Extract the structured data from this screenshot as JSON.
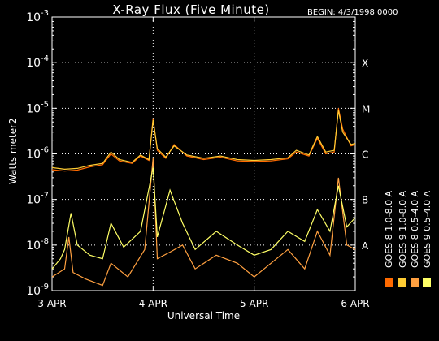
{
  "header": {
    "title": "X-Ray Flux (Five Minute)",
    "begin": "BEGIN: 4/3/1998 0000"
  },
  "axes": {
    "xlabel": "Universal Time",
    "ylabel": "Watts meter2"
  },
  "colors": {
    "background": "#000000",
    "goes8_long": "#ff6a00",
    "goes8_short": "#ffa040",
    "goes9_long": "#ffcc33",
    "goes9_short": "#ffff66",
    "grid": "#ffffff"
  },
  "chart_data": {
    "type": "line",
    "title": "X-Ray Flux (Five Minute)",
    "xlabel": "Universal Time",
    "ylabel": "Watts meter2",
    "yscale": "log",
    "ylim": [
      1e-09,
      0.001
    ],
    "xlim": [
      "1998-04-03T00:00",
      "1998-04-06T00:00"
    ],
    "grid": true,
    "legend_position": "right, vertical",
    "x_ticks": [
      {
        "date": "1998-04-03T00:00",
        "label": "3 APR"
      },
      {
        "date": "1998-04-04T00:00",
        "label": "4 APR"
      },
      {
        "date": "1998-04-05T00:00",
        "label": "5 APR"
      },
      {
        "date": "1998-04-06T00:00",
        "label": "6 APR"
      }
    ],
    "y_ticks": [
      {
        "value": 1e-09,
        "base": "10",
        "exp": "-9"
      },
      {
        "value": 1e-08,
        "base": "10",
        "exp": "-8"
      },
      {
        "value": 1e-07,
        "base": "10",
        "exp": "-7"
      },
      {
        "value": 1e-06,
        "base": "10",
        "exp": "-6"
      },
      {
        "value": 1e-05,
        "base": "10",
        "exp": "-5"
      },
      {
        "value": 0.0001,
        "base": "10",
        "exp": "-4"
      },
      {
        "value": 0.001,
        "base": "10",
        "exp": "-3"
      }
    ],
    "flare_classes": [
      {
        "label": "A",
        "value": 1e-08
      },
      {
        "label": "B",
        "value": 1e-07
      },
      {
        "label": "C",
        "value": 1e-06
      },
      {
        "label": "M",
        "value": 1e-05
      },
      {
        "label": "X",
        "value": 0.0001
      }
    ],
    "series": [
      {
        "name": "GOES 8 1.0-8.0 A",
        "color": "#ff6a00",
        "points": [
          [
            "1998-04-03T00:00",
            4.5e-07
          ],
          [
            "1998-04-03T03:00",
            4.2e-07
          ],
          [
            "1998-04-03T06:00",
            4.4e-07
          ],
          [
            "1998-04-03T09:00",
            5.2e-07
          ],
          [
            "1998-04-03T12:00",
            5.8e-07
          ],
          [
            "1998-04-03T14:00",
            1e-06
          ],
          [
            "1998-04-03T16:00",
            7e-07
          ],
          [
            "1998-04-03T19:00",
            6.2e-07
          ],
          [
            "1998-04-03T21:00",
            9e-07
          ],
          [
            "1998-04-03T23:00",
            7.2e-07
          ],
          [
            "1998-04-04T00:00",
            6e-06
          ],
          [
            "1998-04-04T01:00",
            1.2e-06
          ],
          [
            "1998-04-04T03:00",
            8e-07
          ],
          [
            "1998-04-04T05:00",
            1.6e-06
          ],
          [
            "1998-04-04T08:00",
            9e-07
          ],
          [
            "1998-04-04T12:00",
            7.5e-07
          ],
          [
            "1998-04-04T16:00",
            8.5e-07
          ],
          [
            "1998-04-04T20:00",
            7e-07
          ],
          [
            "1998-04-05T00:00",
            6.8e-07
          ],
          [
            "1998-04-05T04:00",
            7e-07
          ],
          [
            "1998-04-05T08:00",
            7.8e-07
          ],
          [
            "1998-04-05T10:00",
            1.1e-06
          ],
          [
            "1998-04-05T13:00",
            9e-07
          ],
          [
            "1998-04-05T15:00",
            2.2e-06
          ],
          [
            "1998-04-05T17:00",
            1e-06
          ],
          [
            "1998-04-05T19:00",
            1.1e-06
          ],
          [
            "1998-04-05T20:00",
            1e-05
          ],
          [
            "1998-04-05T21:00",
            3.5e-06
          ],
          [
            "1998-04-05T23:00",
            1.5e-06
          ],
          [
            "1998-04-06T00:00",
            1.6e-06
          ]
        ]
      },
      {
        "name": "GOES 8 0.5-4.0 A",
        "color": "#ffa040",
        "points": [
          [
            "1998-04-03T00:00",
            2e-09
          ],
          [
            "1998-04-03T03:00",
            3e-09
          ],
          [
            "1998-04-03T04:00",
            1.5e-08
          ],
          [
            "1998-04-03T05:00",
            2.5e-09
          ],
          [
            "1998-04-03T08:00",
            1.8e-09
          ],
          [
            "1998-04-03T12:00",
            1.3e-09
          ],
          [
            "1998-04-03T14:00",
            4e-09
          ],
          [
            "1998-04-03T18:00",
            2e-09
          ],
          [
            "1998-04-03T22:00",
            8e-09
          ],
          [
            "1998-04-04T00:00",
            8e-07
          ],
          [
            "1998-04-04T01:00",
            5e-09
          ],
          [
            "1998-04-04T04:00",
            7e-09
          ],
          [
            "1998-04-04T07:00",
            1e-08
          ],
          [
            "1998-04-04T10:00",
            3e-09
          ],
          [
            "1998-04-04T15:00",
            6e-09
          ],
          [
            "1998-04-04T20:00",
            4e-09
          ],
          [
            "1998-04-05T00:00",
            2e-09
          ],
          [
            "1998-04-05T04:00",
            4e-09
          ],
          [
            "1998-04-05T08:00",
            8e-09
          ],
          [
            "1998-04-05T12:00",
            3e-09
          ],
          [
            "1998-04-05T15:00",
            2e-08
          ],
          [
            "1998-04-05T18:00",
            6e-09
          ],
          [
            "1998-04-05T20:00",
            3e-07
          ],
          [
            "1998-04-05T22:00",
            1e-08
          ],
          [
            "1998-04-06T00:00",
            8e-09
          ]
        ]
      },
      {
        "name": "GOES 9 1.0-8.0 A",
        "color": "#ffcc33",
        "points": [
          [
            "1998-04-03T00:00",
            5e-07
          ],
          [
            "1998-04-03T03:00",
            4.6e-07
          ],
          [
            "1998-04-03T06:00",
            4.8e-07
          ],
          [
            "1998-04-03T09:00",
            5.6e-07
          ],
          [
            "1998-04-03T12:00",
            6.2e-07
          ],
          [
            "1998-04-03T14:00",
            1.1e-06
          ],
          [
            "1998-04-03T16:00",
            7.5e-07
          ],
          [
            "1998-04-03T19:00",
            6.5e-07
          ],
          [
            "1998-04-03T21:00",
            9.5e-07
          ],
          [
            "1998-04-03T23:00",
            7.5e-07
          ],
          [
            "1998-04-04T00:00",
            5.5e-06
          ],
          [
            "1998-04-04T01:00",
            1.3e-06
          ],
          [
            "1998-04-04T03:00",
            8.5e-07
          ],
          [
            "1998-04-04T05:00",
            1.5e-06
          ],
          [
            "1998-04-04T08:00",
            9.5e-07
          ],
          [
            "1998-04-04T12:00",
            8e-07
          ],
          [
            "1998-04-04T16:00",
            9e-07
          ],
          [
            "1998-04-04T20:00",
            7.5e-07
          ],
          [
            "1998-04-05T00:00",
            7.2e-07
          ],
          [
            "1998-04-05T04:00",
            7.5e-07
          ],
          [
            "1998-04-05T08:00",
            8.2e-07
          ],
          [
            "1998-04-05T10:00",
            1.2e-06
          ],
          [
            "1998-04-05T13:00",
            9.5e-07
          ],
          [
            "1998-04-05T15:00",
            2.4e-06
          ],
          [
            "1998-04-05T17:00",
            1.1e-06
          ],
          [
            "1998-04-05T19:00",
            1.2e-06
          ],
          [
            "1998-04-05T20:00",
            9e-06
          ],
          [
            "1998-04-05T21:00",
            3e-06
          ],
          [
            "1998-04-05T23:00",
            1.6e-06
          ],
          [
            "1998-04-06T00:00",
            1.7e-06
          ]
        ]
      },
      {
        "name": "GOES 9 0.5-4.0 A",
        "color": "#ffff66",
        "points": [
          [
            "1998-04-03T00:00",
            3e-09
          ],
          [
            "1998-04-03T02:00",
            5e-09
          ],
          [
            "1998-04-03T03:00",
            8e-09
          ],
          [
            "1998-04-03T04:30",
            5e-08
          ],
          [
            "1998-04-03T06:00",
            1e-08
          ],
          [
            "1998-04-03T09:00",
            6e-09
          ],
          [
            "1998-04-03T12:00",
            5e-09
          ],
          [
            "1998-04-03T14:00",
            3e-08
          ],
          [
            "1998-04-03T17:00",
            9e-09
          ],
          [
            "1998-04-03T21:00",
            2e-08
          ],
          [
            "1998-04-04T00:00",
            5e-07
          ],
          [
            "1998-04-04T01:00",
            1.5e-08
          ],
          [
            "1998-04-04T04:00",
            1.6e-07
          ],
          [
            "1998-04-04T07:00",
            3e-08
          ],
          [
            "1998-04-04T10:00",
            8e-09
          ],
          [
            "1998-04-04T15:00",
            2e-08
          ],
          [
            "1998-04-04T20:00",
            1e-08
          ],
          [
            "1998-04-05T00:00",
            6e-09
          ],
          [
            "1998-04-05T04:00",
            8e-09
          ],
          [
            "1998-04-05T08:00",
            2e-08
          ],
          [
            "1998-04-05T12:00",
            1.2e-08
          ],
          [
            "1998-04-05T15:00",
            6e-08
          ],
          [
            "1998-04-05T18:00",
            2e-08
          ],
          [
            "1998-04-05T20:00",
            2e-07
          ],
          [
            "1998-04-05T22:00",
            2.5e-08
          ],
          [
            "1998-04-06T00:00",
            4e-08
          ]
        ]
      }
    ]
  }
}
